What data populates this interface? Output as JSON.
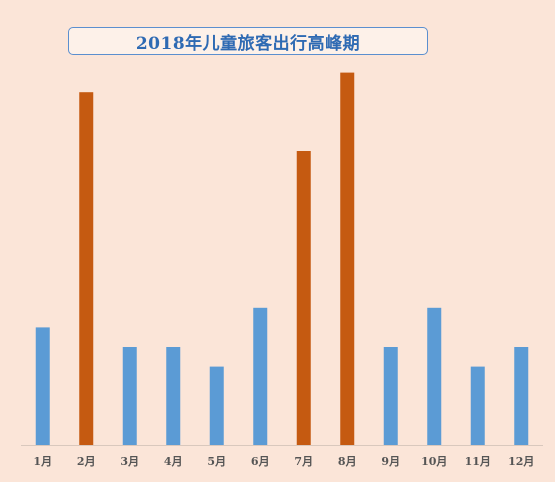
{
  "chart_data": {
    "type": "bar",
    "title": "2018年儿童旅客出行高峰期",
    "categories": [
      "1月",
      "2月",
      "3月",
      "4月",
      "5月",
      "6月",
      "7月",
      "8月",
      "9月",
      "10月",
      "11月",
      "12月"
    ],
    "values": [
      6,
      18,
      5,
      5,
      4,
      7,
      15,
      19,
      5,
      7,
      4,
      5
    ],
    "bar_colors": [
      "#5b9bd5",
      "#c55a11",
      "#5b9bd5",
      "#5b9bd5",
      "#5b9bd5",
      "#5b9bd5",
      "#c55a11",
      "#c55a11",
      "#5b9bd5",
      "#5b9bd5",
      "#5b9bd5",
      "#5b9bd5"
    ],
    "ylim": [
      0,
      20
    ],
    "grid": false,
    "legend": "none",
    "xlabel": "",
    "ylabel": ""
  }
}
